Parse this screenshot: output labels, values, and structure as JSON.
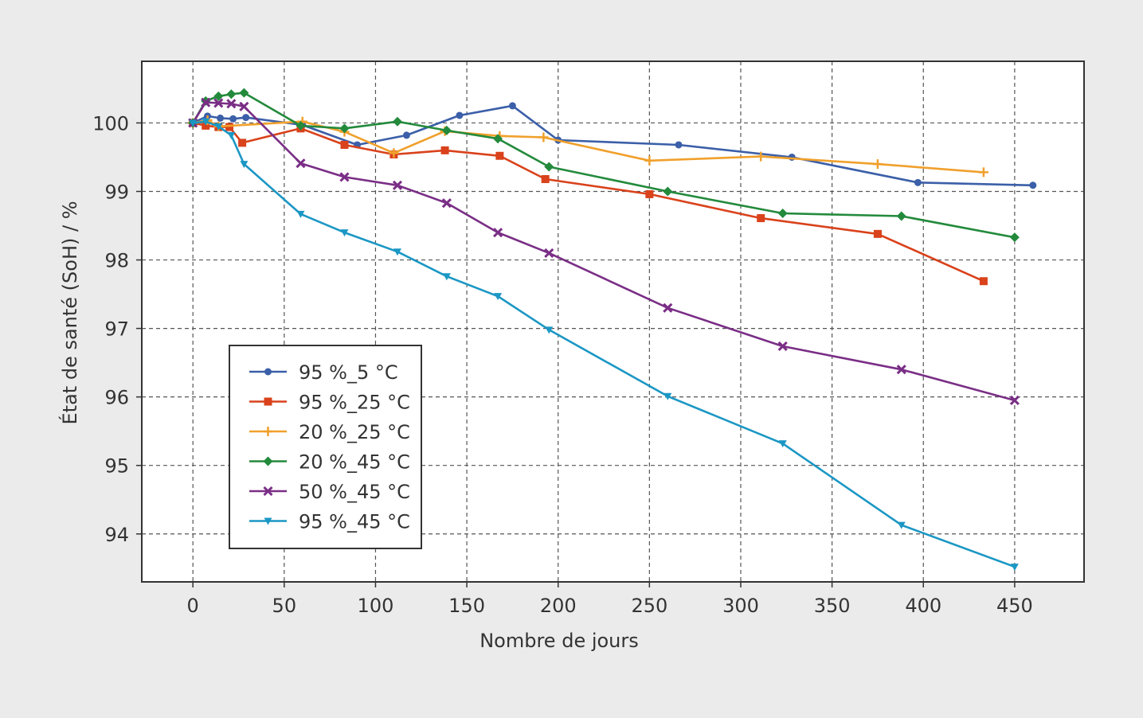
{
  "chart_data": {
    "type": "line",
    "xlabel": "Nombre de jours",
    "ylabel": "État de santé (SoH) / %",
    "xlim": [
      -28,
      488
    ],
    "ylim": [
      93.3,
      100.9
    ],
    "xticks": [
      0,
      50,
      100,
      150,
      200,
      250,
      300,
      350,
      400,
      450
    ],
    "yticks": [
      94,
      95,
      96,
      97,
      98,
      99,
      100
    ],
    "grid": true,
    "legend_position": "lower-left",
    "series": [
      {
        "name": "95 %_5 °C",
        "color": "#3b5fa8",
        "marker": "circle",
        "points": [
          [
            0,
            100.0
          ],
          [
            8,
            100.1
          ],
          [
            15,
            100.07
          ],
          [
            22,
            100.06
          ],
          [
            29,
            100.08
          ],
          [
            60,
            99.97
          ],
          [
            90,
            99.68
          ],
          [
            117,
            99.82
          ],
          [
            146,
            100.11
          ],
          [
            175,
            100.25
          ],
          [
            200,
            99.75
          ],
          [
            266,
            99.68
          ],
          [
            328,
            99.5
          ],
          [
            397,
            99.13
          ],
          [
            460,
            99.09
          ]
        ]
      },
      {
        "name": "95 %_25 °C",
        "color": "#d9421b",
        "marker": "square",
        "points": [
          [
            0,
            100.0
          ],
          [
            7,
            99.96
          ],
          [
            14,
            99.94
          ],
          [
            20,
            99.94
          ],
          [
            27,
            99.71
          ],
          [
            59,
            99.92
          ],
          [
            83,
            99.68
          ],
          [
            110,
            99.54
          ],
          [
            138,
            99.6
          ],
          [
            168,
            99.52
          ],
          [
            193,
            99.18
          ],
          [
            250,
            98.96
          ],
          [
            311,
            98.61
          ],
          [
            375,
            98.38
          ],
          [
            433,
            97.69
          ]
        ]
      },
      {
        "name": "20 %_25 °C",
        "color": "#f0a02c",
        "marker": "plus",
        "points": [
          [
            0,
            100.0
          ],
          [
            8,
            100.04
          ],
          [
            14,
            99.95
          ],
          [
            60,
            100.02
          ],
          [
            83,
            99.87
          ],
          [
            110,
            99.56
          ],
          [
            138,
            99.88
          ],
          [
            168,
            99.81
          ],
          [
            192,
            99.79
          ],
          [
            250,
            99.45
          ],
          [
            311,
            99.51
          ],
          [
            375,
            99.4
          ],
          [
            433,
            99.28
          ]
        ]
      },
      {
        "name": "20 %_45 °C",
        "color": "#238a3c",
        "marker": "diamond",
        "points": [
          [
            0,
            100.0
          ],
          [
            7,
            100.32
          ],
          [
            14,
            100.39
          ],
          [
            21,
            100.42
          ],
          [
            28,
            100.44
          ],
          [
            59,
            99.96
          ],
          [
            83,
            99.92
          ],
          [
            112,
            100.02
          ],
          [
            139,
            99.89
          ],
          [
            167,
            99.77
          ],
          [
            195,
            99.36
          ],
          [
            260,
            99.0
          ],
          [
            323,
            98.68
          ],
          [
            388,
            98.64
          ],
          [
            450,
            98.33
          ]
        ]
      },
      {
        "name": "50 %_45 °C",
        "color": "#7a2e86",
        "marker": "x",
        "points": [
          [
            0,
            100.0
          ],
          [
            7,
            100.3
          ],
          [
            14,
            100.29
          ],
          [
            21,
            100.28
          ],
          [
            28,
            100.24
          ],
          [
            59,
            99.41
          ],
          [
            83,
            99.21
          ],
          [
            112,
            99.09
          ],
          [
            139,
            98.83
          ],
          [
            167,
            98.4
          ],
          [
            195,
            98.1
          ],
          [
            260,
            97.3
          ],
          [
            323,
            96.74
          ],
          [
            388,
            96.4
          ],
          [
            450,
            95.95
          ]
        ]
      },
      {
        "name": "95 %_45 °C",
        "color": "#1b97c4",
        "marker": "triangle-down",
        "points": [
          [
            0,
            100.0
          ],
          [
            7,
            100.02
          ],
          [
            14,
            99.95
          ],
          [
            21,
            99.82
          ],
          [
            28,
            99.4
          ],
          [
            59,
            98.67
          ],
          [
            83,
            98.4
          ],
          [
            112,
            98.12
          ],
          [
            139,
            97.76
          ],
          [
            167,
            97.47
          ],
          [
            195,
            96.98
          ],
          [
            260,
            96.01
          ],
          [
            323,
            95.32
          ],
          [
            388,
            94.13
          ],
          [
            450,
            93.52
          ]
        ]
      }
    ]
  }
}
